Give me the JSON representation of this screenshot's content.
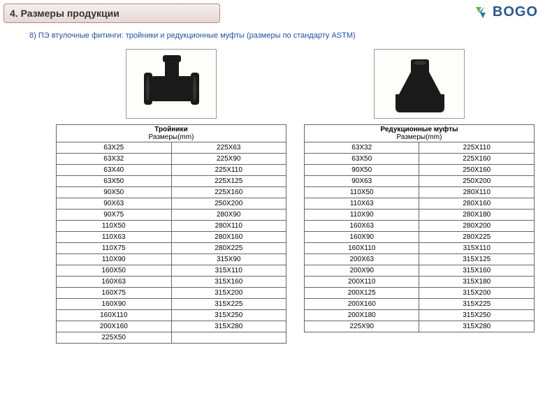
{
  "header_title": "4. Размеры продукции",
  "logo_text": "BOGO",
  "subtitle": "8) ПЭ втулочные фитинги: тройники и редукционные муфты (размеры по стандарту ASTM)",
  "colors": {
    "header_border": "#c08080",
    "subtitle_color": "#2050a0",
    "table_border": "#666666",
    "logo_color": "#2a5a8a"
  },
  "left_table": {
    "title": "Тройники",
    "subtitle": "Размеры(mm)",
    "rows": [
      [
        "63X25",
        "225X63"
      ],
      [
        "63X32",
        "225X90"
      ],
      [
        "63X40",
        "225X110"
      ],
      [
        "63X50",
        "225X125"
      ],
      [
        "90X50",
        "225X160"
      ],
      [
        "90X63",
        "250X200"
      ],
      [
        "90X75",
        "280X90"
      ],
      [
        "110X50",
        "280X110"
      ],
      [
        "110X63",
        "280X160"
      ],
      [
        "110X75",
        "280X225"
      ],
      [
        "110X90",
        "315X90"
      ],
      [
        "160X50",
        "315X110"
      ],
      [
        "160X63",
        "315X160"
      ],
      [
        "160X75",
        "315X200"
      ],
      [
        "160X90",
        "315X225"
      ],
      [
        "160X110",
        "315X250"
      ],
      [
        "200X160",
        "315X280"
      ],
      [
        "225X50",
        ""
      ]
    ]
  },
  "right_table": {
    "title": "Редукционные муфты",
    "subtitle": "Размеры(mm)",
    "rows": [
      [
        "63X32",
        "225X110"
      ],
      [
        "63X50",
        "225X160"
      ],
      [
        "90X50",
        "250X160"
      ],
      [
        "90X63",
        "250X200"
      ],
      [
        "110X50",
        "280X110"
      ],
      [
        "110X63",
        "280X160"
      ],
      [
        "110X90",
        "280X180"
      ],
      [
        "160X63",
        "280X200"
      ],
      [
        "160X90",
        "280X225"
      ],
      [
        "160X110",
        "315X110"
      ],
      [
        "200X63",
        "315X125"
      ],
      [
        "200X90",
        "315X160"
      ],
      [
        "200X110",
        "315X180"
      ],
      [
        "200X125",
        "315X200"
      ],
      [
        "200X160",
        "315X225"
      ],
      [
        "200X180",
        "315X250"
      ],
      [
        "225X90",
        "315X280"
      ]
    ]
  }
}
